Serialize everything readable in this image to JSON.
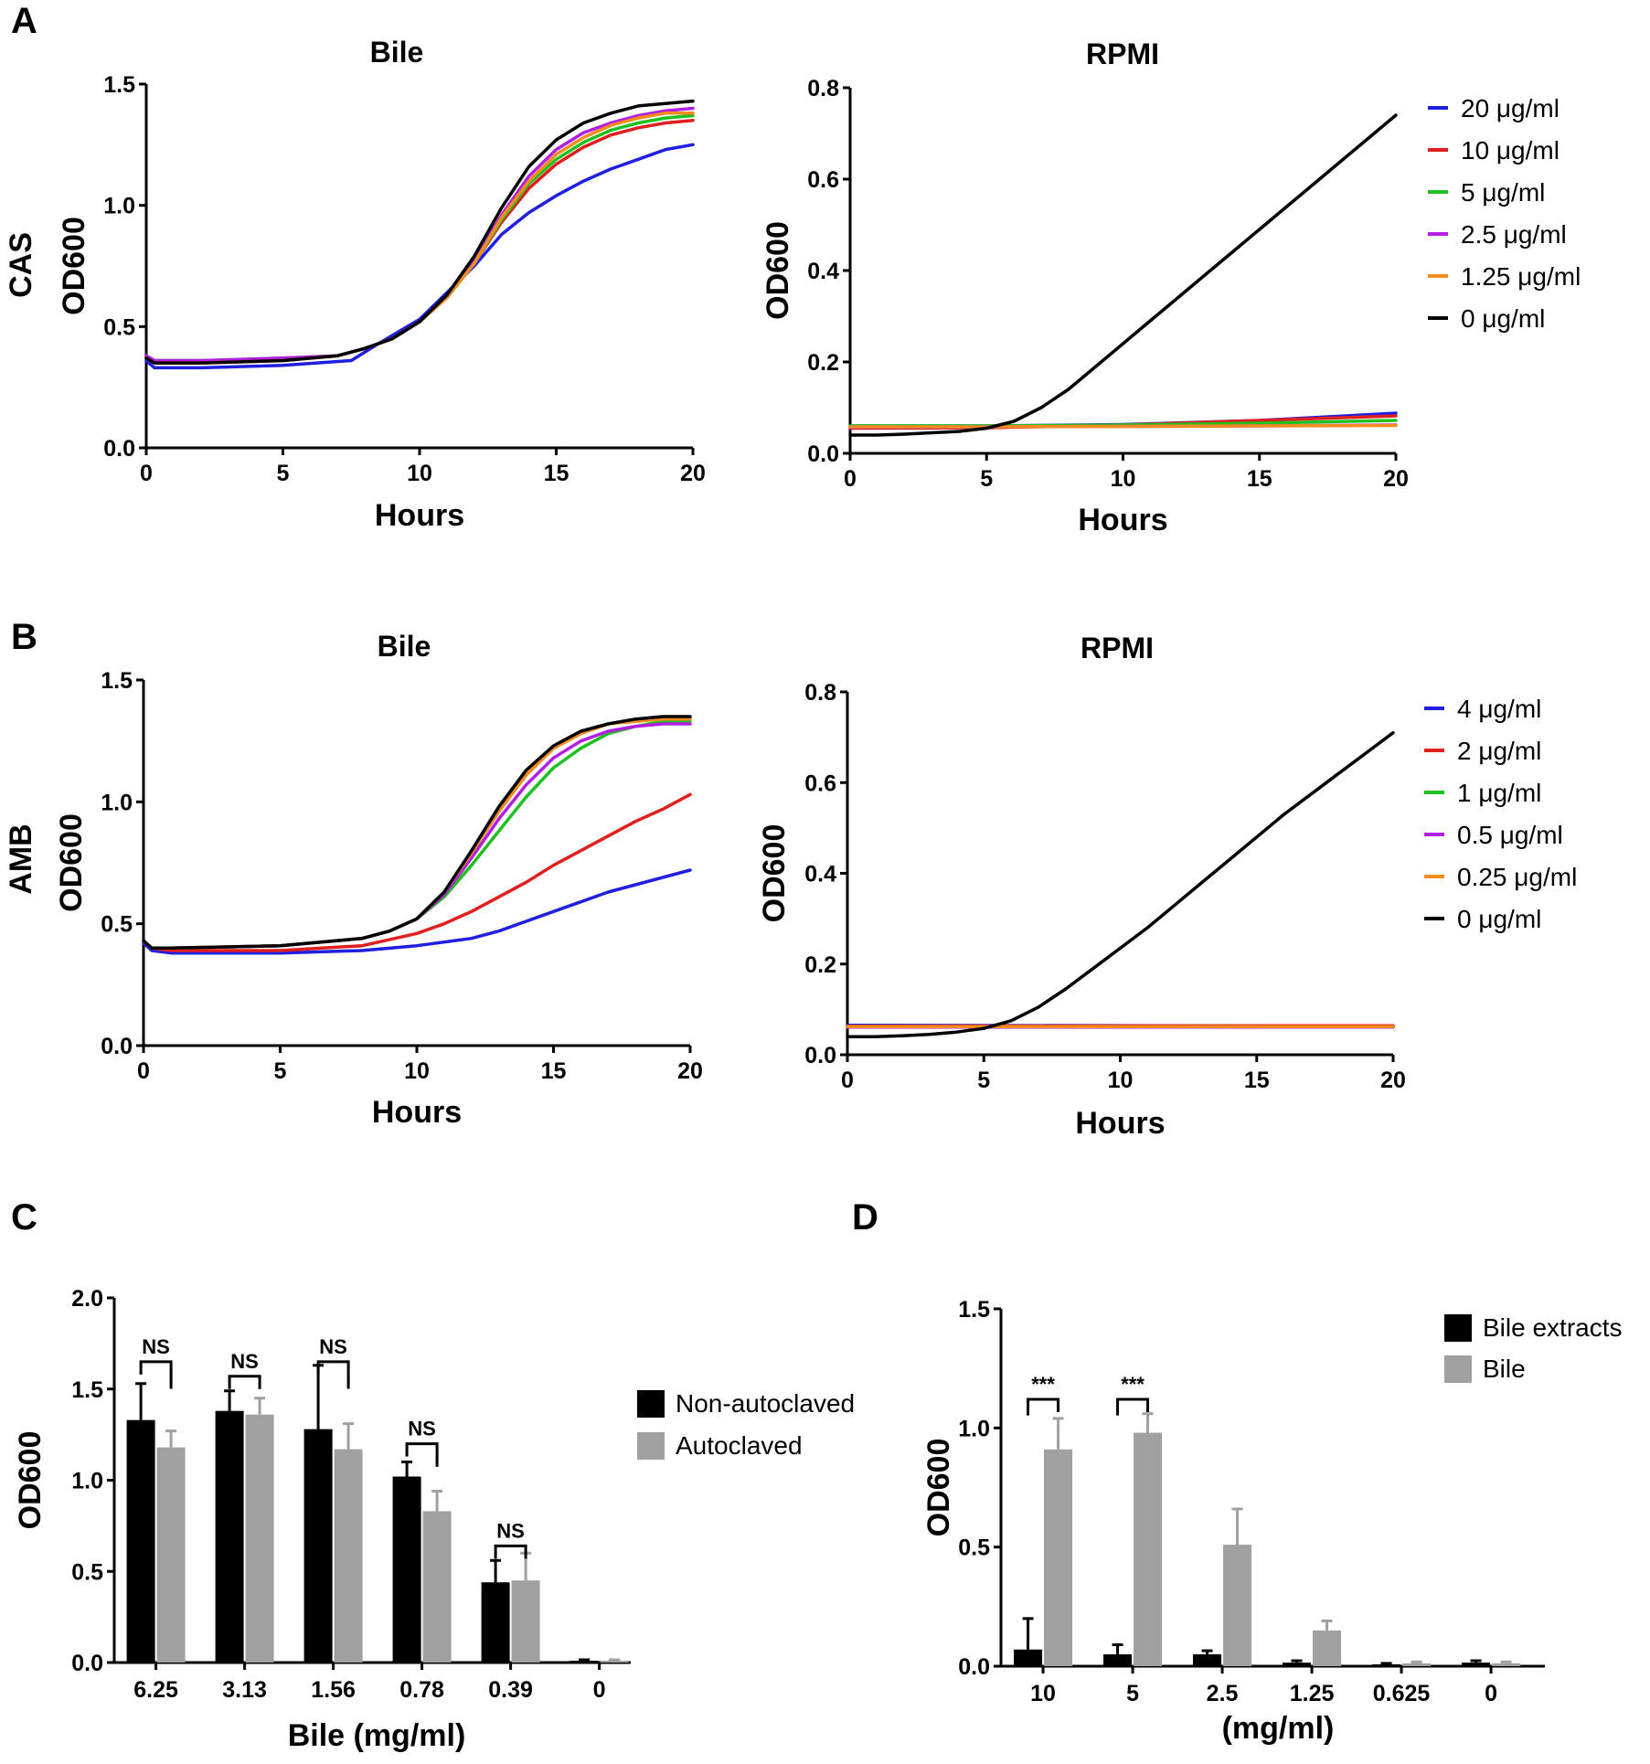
{
  "panels": {
    "A": {
      "letter": "A",
      "row_label": "CAS",
      "bile_title": "Bile",
      "rpmi_title": "RPMI",
      "legend": [
        {
          "label": "20 μg/ml",
          "color": "#1f1fe0"
        },
        {
          "label": "10 μg/ml",
          "color": "#e01f1f"
        },
        {
          "label": "5 μg/ml",
          "color": "#1fc01f"
        },
        {
          "label": "2.5 μg/ml",
          "color": "#b31fe0"
        },
        {
          "label": "1.25 μg/ml",
          "color": "#f28c1f"
        },
        {
          "label": "0 μg/ml",
          "color": "#000000"
        }
      ]
    },
    "B": {
      "letter": "B",
      "row_label": "AMB",
      "bile_title": "Bile",
      "rpmi_title": "RPMI",
      "legend": [
        {
          "label": "4 μg/ml",
          "color": "#1f1fe0"
        },
        {
          "label": "2 μg/ml",
          "color": "#e01f1f"
        },
        {
          "label": "1 μg/ml",
          "color": "#1fc01f"
        },
        {
          "label": "0.5 μg/ml",
          "color": "#b31fe0"
        },
        {
          "label": "0.25 μg/ml",
          "color": "#f28c1f"
        },
        {
          "label": "0 μg/ml",
          "color": "#000000"
        }
      ]
    },
    "C": {
      "letter": "C",
      "legend": [
        {
          "label": "Non-autoclaved",
          "color": "#000000"
        },
        {
          "label": "Autoclaved",
          "color": "#a0a0a0"
        }
      ]
    },
    "D": {
      "letter": "D",
      "legend": [
        {
          "label": "Bile  extracts",
          "color": "#000000"
        },
        {
          "label": "Bile",
          "color": "#a0a0a0"
        }
      ]
    }
  },
  "chart_data": [
    {
      "id": "A-bile",
      "type": "line",
      "title": "Bile",
      "xlabel": "Hours",
      "ylabel": "OD600",
      "xlim": [
        0,
        20
      ],
      "ylim": [
        0,
        1.5
      ],
      "xticks": [
        0,
        5,
        10,
        15,
        20
      ],
      "yticks": [
        0.0,
        0.5,
        1.0,
        1.5
      ],
      "series": [
        {
          "name": "20 μg/ml",
          "color": "#1f1fe0",
          "x": [
            0,
            0.3,
            2,
            5,
            7.5,
            8.5,
            10,
            12,
            13,
            14,
            15,
            16,
            17,
            18,
            19,
            20
          ],
          "y": [
            0.36,
            0.33,
            0.33,
            0.34,
            0.36,
            0.43,
            0.53,
            0.75,
            0.88,
            0.97,
            1.04,
            1.1,
            1.15,
            1.19,
            1.23,
            1.25
          ]
        },
        {
          "name": "10 μg/ml",
          "color": "#e01f1f",
          "x": [
            0,
            0.3,
            2,
            5,
            7,
            8,
            9,
            10,
            11,
            12,
            13,
            14,
            15,
            16,
            17,
            18,
            19,
            20
          ],
          "y": [
            0.37,
            0.35,
            0.35,
            0.36,
            0.38,
            0.41,
            0.45,
            0.52,
            0.62,
            0.76,
            0.93,
            1.07,
            1.17,
            1.24,
            1.29,
            1.32,
            1.34,
            1.35
          ]
        },
        {
          "name": "5 μg/ml",
          "color": "#1fc01f",
          "x": [
            0,
            0.3,
            2,
            5,
            7,
            8,
            9,
            10,
            11,
            12,
            13,
            14,
            15,
            16,
            17,
            18,
            19,
            20
          ],
          "y": [
            0.38,
            0.36,
            0.36,
            0.37,
            0.38,
            0.41,
            0.45,
            0.52,
            0.62,
            0.76,
            0.94,
            1.09,
            1.19,
            1.26,
            1.31,
            1.34,
            1.36,
            1.37
          ]
        },
        {
          "name": "2.5 μg/ml",
          "color": "#b31fe0",
          "x": [
            0,
            0.3,
            2,
            5,
            7,
            8,
            9,
            10,
            11,
            12,
            13,
            14,
            15,
            16,
            17,
            18,
            19,
            20
          ],
          "y": [
            0.38,
            0.36,
            0.36,
            0.37,
            0.38,
            0.41,
            0.45,
            0.52,
            0.62,
            0.77,
            0.96,
            1.12,
            1.23,
            1.3,
            1.34,
            1.37,
            1.39,
            1.4
          ]
        },
        {
          "name": "1.25 μg/ml",
          "color": "#f28c1f",
          "x": [
            0,
            0.3,
            2,
            5,
            7,
            8,
            9,
            10,
            11,
            12,
            13,
            14,
            15,
            16,
            17,
            18,
            19,
            20
          ],
          "y": [
            0.37,
            0.35,
            0.35,
            0.36,
            0.38,
            0.41,
            0.45,
            0.52,
            0.62,
            0.76,
            0.95,
            1.1,
            1.21,
            1.28,
            1.33,
            1.36,
            1.38,
            1.38
          ]
        },
        {
          "name": "0 μg/ml",
          "color": "#000000",
          "x": [
            0,
            0.3,
            2,
            5,
            7,
            8,
            9,
            10,
            11,
            12,
            13,
            14,
            15,
            16,
            17,
            18,
            19,
            20
          ],
          "y": [
            0.37,
            0.35,
            0.35,
            0.36,
            0.38,
            0.41,
            0.45,
            0.52,
            0.63,
            0.79,
            0.99,
            1.16,
            1.27,
            1.34,
            1.38,
            1.41,
            1.42,
            1.43
          ]
        }
      ]
    },
    {
      "id": "A-rpmi",
      "type": "line",
      "title": "RPMI",
      "xlabel": "Hours",
      "ylabel": "OD600",
      "xlim": [
        0,
        20
      ],
      "ylim": [
        0,
        0.8
      ],
      "xticks": [
        0,
        5,
        10,
        15,
        20
      ],
      "yticks": [
        0.0,
        0.2,
        0.4,
        0.6,
        0.8
      ],
      "series": [
        {
          "name": "20 μg/ml",
          "color": "#1f1fe0",
          "x": [
            0,
            5,
            10,
            15,
            20
          ],
          "y": [
            0.06,
            0.06,
            0.063,
            0.072,
            0.088
          ]
        },
        {
          "name": "10 μg/ml",
          "color": "#e01f1f",
          "x": [
            0,
            5,
            10,
            15,
            20
          ],
          "y": [
            0.055,
            0.056,
            0.062,
            0.072,
            0.082
          ]
        },
        {
          "name": "5 μg/ml",
          "color": "#1fc01f",
          "x": [
            0,
            5,
            10,
            15,
            20
          ],
          "y": [
            0.06,
            0.06,
            0.062,
            0.066,
            0.072
          ]
        },
        {
          "name": "2.5 μg/ml",
          "color": "#b31fe0",
          "x": [
            0,
            5,
            10,
            15,
            20
          ],
          "y": [
            0.057,
            0.058,
            0.059,
            0.06,
            0.062
          ]
        },
        {
          "name": "1.25 μg/ml",
          "color": "#f28c1f",
          "x": [
            0,
            5,
            10,
            15,
            20
          ],
          "y": [
            0.058,
            0.058,
            0.059,
            0.06,
            0.061
          ]
        },
        {
          "name": "0 μg/ml",
          "color": "#000000",
          "x": [
            0,
            1,
            2,
            3,
            4,
            5,
            6,
            7,
            8,
            9,
            10,
            11,
            12,
            13,
            14,
            15,
            16,
            17,
            18,
            19,
            20
          ],
          "y": [
            0.04,
            0.04,
            0.042,
            0.045,
            0.048,
            0.055,
            0.07,
            0.1,
            0.14,
            0.19,
            0.24,
            0.29,
            0.34,
            0.39,
            0.44,
            0.49,
            0.54,
            0.59,
            0.64,
            0.69,
            0.74
          ]
        }
      ]
    },
    {
      "id": "B-bile",
      "type": "line",
      "title": "Bile",
      "xlabel": "Hours",
      "ylabel": "OD600",
      "xlim": [
        0,
        20
      ],
      "ylim": [
        0,
        1.5
      ],
      "xticks": [
        0,
        5,
        10,
        15,
        20
      ],
      "yticks": [
        0.0,
        0.5,
        1.0,
        1.5
      ],
      "series": [
        {
          "name": "4 μg/ml",
          "color": "#1f1fe0",
          "x": [
            0,
            0.3,
            1,
            5,
            8,
            10,
            12,
            13,
            14,
            15,
            16,
            17,
            18,
            19,
            20
          ],
          "y": [
            0.42,
            0.39,
            0.38,
            0.38,
            0.39,
            0.41,
            0.44,
            0.47,
            0.51,
            0.55,
            0.59,
            0.63,
            0.66,
            0.69,
            0.72
          ]
        },
        {
          "name": "2 μg/ml",
          "color": "#e01f1f",
          "x": [
            0,
            0.3,
            1,
            5,
            8,
            10,
            11,
            12,
            13,
            14,
            15,
            16,
            17,
            18,
            19,
            20
          ],
          "y": [
            0.43,
            0.4,
            0.39,
            0.39,
            0.41,
            0.46,
            0.5,
            0.55,
            0.61,
            0.67,
            0.74,
            0.8,
            0.86,
            0.92,
            0.97,
            1.03
          ]
        },
        {
          "name": "1 μg/ml",
          "color": "#1fc01f",
          "x": [
            0,
            0.3,
            1,
            5,
            8,
            9,
            10,
            11,
            12,
            13,
            14,
            15,
            16,
            17,
            18,
            19,
            20
          ],
          "y": [
            0.43,
            0.4,
            0.4,
            0.41,
            0.44,
            0.47,
            0.52,
            0.61,
            0.74,
            0.88,
            1.02,
            1.14,
            1.22,
            1.28,
            1.31,
            1.33,
            1.33
          ]
        },
        {
          "name": "0.5 μg/ml",
          "color": "#b31fe0",
          "x": [
            0,
            0.3,
            1,
            5,
            8,
            9,
            10,
            11,
            12,
            13,
            14,
            15,
            16,
            17,
            18,
            19,
            20
          ],
          "y": [
            0.43,
            0.4,
            0.4,
            0.41,
            0.44,
            0.47,
            0.52,
            0.62,
            0.77,
            0.93,
            1.07,
            1.18,
            1.25,
            1.29,
            1.31,
            1.32,
            1.32
          ]
        },
        {
          "name": "0.25 μg/ml",
          "color": "#f28c1f",
          "x": [
            0,
            0.3,
            1,
            5,
            8,
            9,
            10,
            11,
            12,
            13,
            14,
            15,
            16,
            17,
            18,
            19,
            20
          ],
          "y": [
            0.43,
            0.4,
            0.4,
            0.41,
            0.44,
            0.47,
            0.52,
            0.63,
            0.79,
            0.96,
            1.11,
            1.22,
            1.28,
            1.32,
            1.33,
            1.34,
            1.34
          ]
        },
        {
          "name": "0 μg/ml",
          "color": "#000000",
          "x": [
            0,
            0.3,
            1,
            5,
            8,
            9,
            10,
            11,
            12,
            13,
            14,
            15,
            16,
            17,
            18,
            19,
            20
          ],
          "y": [
            0.43,
            0.4,
            0.4,
            0.41,
            0.44,
            0.47,
            0.52,
            0.63,
            0.8,
            0.98,
            1.13,
            1.23,
            1.29,
            1.32,
            1.34,
            1.35,
            1.35
          ]
        }
      ]
    },
    {
      "id": "B-rpmi",
      "type": "line",
      "title": "RPMI",
      "xlabel": "Hours",
      "ylabel": "OD600",
      "xlim": [
        0,
        20
      ],
      "ylim": [
        0,
        0.8
      ],
      "xticks": [
        0,
        5,
        10,
        15,
        20
      ],
      "yticks": [
        0.0,
        0.2,
        0.4,
        0.6,
        0.8
      ],
      "series": [
        {
          "name": "4 μg/ml",
          "color": "#1f1fe0",
          "x": [
            0,
            20
          ],
          "y": [
            0.065,
            0.063
          ]
        },
        {
          "name": "2 μg/ml",
          "color": "#e01f1f",
          "x": [
            0,
            20
          ],
          "y": [
            0.063,
            0.064
          ]
        },
        {
          "name": "1 μg/ml",
          "color": "#1fc01f",
          "x": [
            0,
            20
          ],
          "y": [
            0.062,
            0.062
          ]
        },
        {
          "name": "0.5 μg/ml",
          "color": "#b31fe0",
          "x": [
            0,
            20
          ],
          "y": [
            0.061,
            0.061
          ]
        },
        {
          "name": "0.25 μg/ml",
          "color": "#f28c1f",
          "x": [
            0,
            20
          ],
          "y": [
            0.062,
            0.062
          ]
        },
        {
          "name": "0 μg/ml",
          "color": "#000000",
          "x": [
            0,
            1,
            2,
            3,
            4,
            5,
            6,
            7,
            8,
            9,
            10,
            11,
            12,
            13,
            14,
            15,
            16,
            17,
            18,
            19,
            20
          ],
          "y": [
            0.04,
            0.04,
            0.042,
            0.045,
            0.05,
            0.058,
            0.075,
            0.105,
            0.145,
            0.19,
            0.235,
            0.28,
            0.33,
            0.38,
            0.43,
            0.48,
            0.53,
            0.575,
            0.62,
            0.665,
            0.71
          ]
        }
      ]
    },
    {
      "id": "C",
      "type": "bar",
      "xlabel": "Bile (mg/ml)",
      "ylabel": "OD600",
      "ylim": [
        0,
        2.0
      ],
      "yticks": [
        0.0,
        0.5,
        1.0,
        1.5,
        2.0
      ],
      "ytick_labels": [
        "0.0",
        "0.5",
        "1.0",
        "1.5",
        "2.0"
      ],
      "categories": [
        "6.25",
        "3.13",
        "1.56",
        "0.78",
        "0.39",
        "0"
      ],
      "series": [
        {
          "name": "Non-autoclaved",
          "color": "#000000",
          "values": [
            1.33,
            1.38,
            1.28,
            1.02,
            0.44,
            0.01
          ],
          "errors": [
            0.2,
            0.11,
            0.35,
            0.08,
            0.12,
            0.005
          ]
        },
        {
          "name": "Autoclaved",
          "color": "#a0a0a0",
          "values": [
            1.18,
            1.36,
            1.17,
            0.83,
            0.45,
            0.01
          ],
          "errors": [
            0.09,
            0.09,
            0.14,
            0.11,
            0.15,
            0.005
          ]
        }
      ],
      "annotations": [
        {
          "category": "6.25",
          "text": "NS",
          "level": 1.65
        },
        {
          "category": "3.13",
          "text": "NS",
          "level": 1.57
        },
        {
          "category": "1.56",
          "text": "NS",
          "level": 1.65
        },
        {
          "category": "0.78",
          "text": "NS",
          "level": 1.2
        },
        {
          "category": "0.39",
          "text": "NS",
          "level": 0.64
        }
      ]
    },
    {
      "id": "D",
      "type": "bar",
      "xlabel": "(mg/ml)",
      "ylabel": "OD600",
      "ylim": [
        0,
        1.5
      ],
      "yticks": [
        0.0,
        0.5,
        1.0,
        1.5
      ],
      "ytick_labels": [
        "0.0",
        "0.5",
        "1.0",
        "1.5"
      ],
      "categories": [
        "10",
        "5",
        "2.5",
        "1.25",
        "0.625",
        "0"
      ],
      "series": [
        {
          "name": "Bile  extracts",
          "color": "#000000",
          "values": [
            0.07,
            0.05,
            0.05,
            0.015,
            0.008,
            0.015
          ],
          "errors": [
            0.13,
            0.04,
            0.015,
            0.008,
            0.004,
            0.008
          ]
        },
        {
          "name": "Bile",
          "color": "#a0a0a0",
          "values": [
            0.91,
            0.98,
            0.51,
            0.15,
            0.012,
            0.012
          ],
          "errors": [
            0.13,
            0.08,
            0.15,
            0.04,
            0.006,
            0.006
          ]
        }
      ],
      "annotations": [
        {
          "category": "10",
          "text": "***",
          "level": 1.12
        },
        {
          "category": "5",
          "text": "***",
          "level": 1.12
        }
      ]
    }
  ]
}
